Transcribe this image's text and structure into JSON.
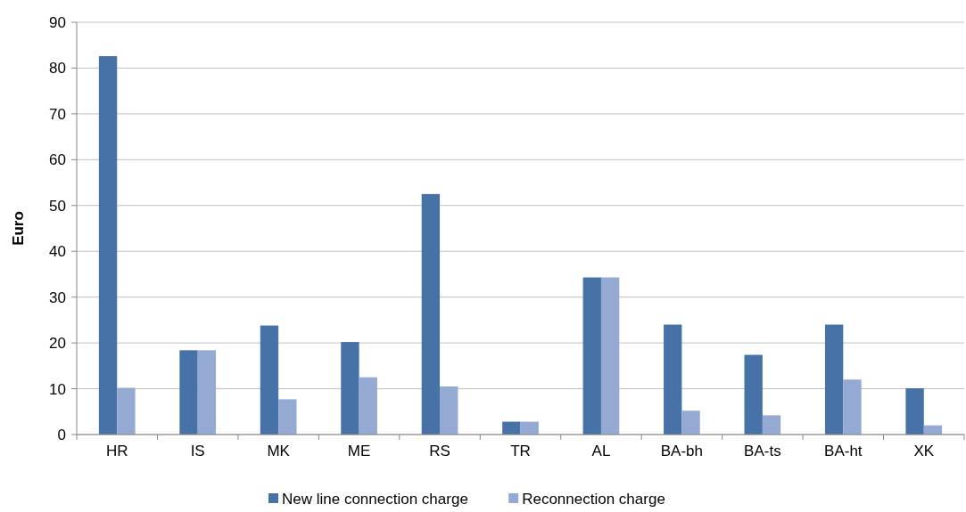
{
  "chart_data": {
    "type": "bar",
    "ylabel": "Euro",
    "categories": [
      "HR",
      "IS",
      "MK",
      "ME",
      "RS",
      "TR",
      "AL",
      "BA-bh",
      "BA-ts",
      "BA-ht",
      "XK"
    ],
    "series": [
      {
        "name": "New line connection charge",
        "color": "#4672a8",
        "values": [
          82.6,
          18.4,
          23.8,
          20.2,
          52.5,
          2.8,
          34.3,
          24,
          17.4,
          24,
          10.1
        ]
      },
      {
        "name": "Reconnection charge",
        "color": "#95aad2",
        "values": [
          10.2,
          18.4,
          7.7,
          12.5,
          10.5,
          2.8,
          34.3,
          5.2,
          4.2,
          12,
          2
        ]
      }
    ],
    "ylim": [
      0,
      90
    ],
    "yticks": [
      0,
      10,
      20,
      30,
      40,
      50,
      60,
      70,
      80,
      90
    ],
    "grid": "y",
    "legend": "bottom"
  }
}
